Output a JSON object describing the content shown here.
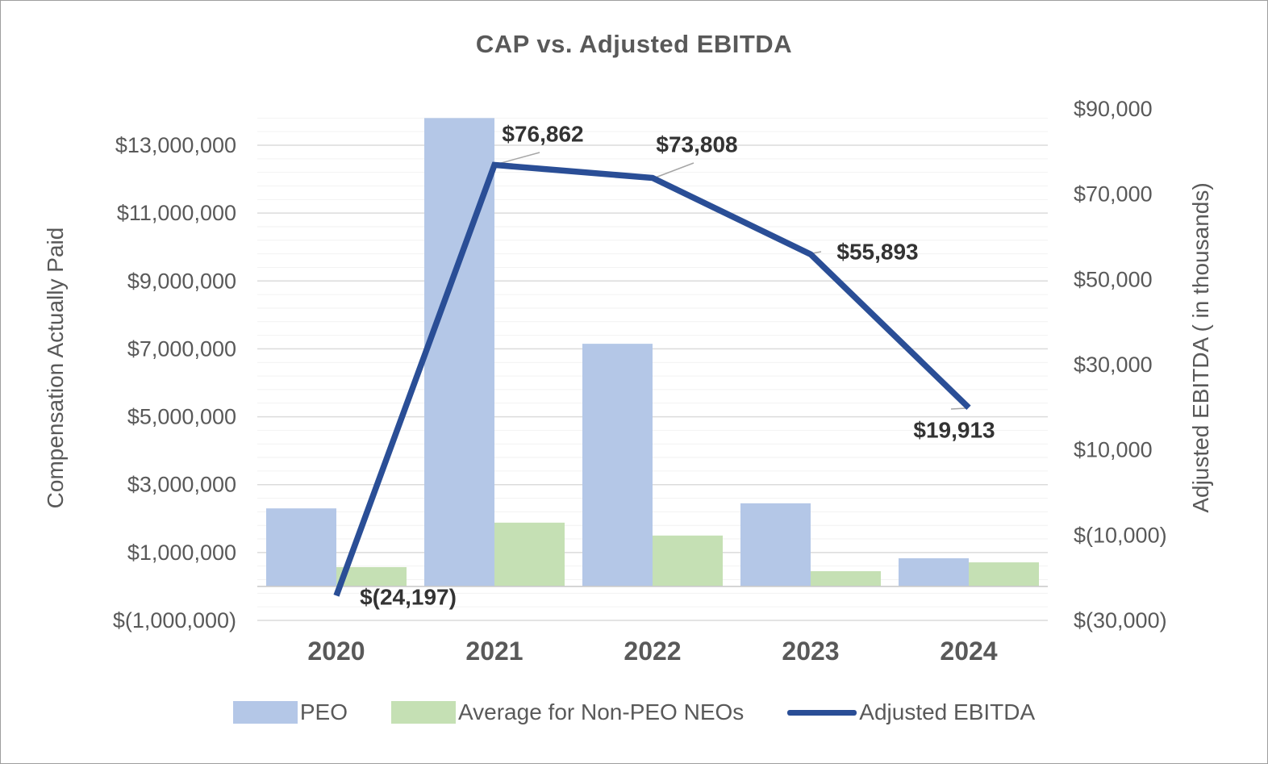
{
  "title": "CAP vs. Adjusted EBITDA",
  "left_axis": {
    "title": "Compensation Actually Paid",
    "tick_values": [
      -1000000,
      1000000,
      3000000,
      5000000,
      7000000,
      9000000,
      11000000,
      13000000
    ],
    "tick_labels": [
      "$(1,000,000)",
      "$1,000,000",
      "$3,000,000",
      "$5,000,000",
      "$7,000,000",
      "$9,000,000",
      "$11,000,000",
      "$13,000,000"
    ]
  },
  "right_axis": {
    "title": "Adjusted EBITDA ( in thousands)",
    "tick_values": [
      -30000,
      -10000,
      10000,
      30000,
      50000,
      70000,
      90000
    ],
    "tick_labels": [
      "$(30,000)",
      "$(10,000)",
      "$10,000",
      "$30,000",
      "$50,000",
      "$70,000",
      "$90,000"
    ]
  },
  "colors": {
    "peo_bar": "#b4c7e7",
    "non_peo_bar": "#c5e0b4",
    "ebitda_line": "#2a4e96",
    "axis_text": "#595959",
    "data_label_text": "#333333",
    "major_gridline": "#dbdbdb",
    "minor_gridline": "#f2f2f2",
    "baseline": "#c8c8c8",
    "leader_line": "#a6a6a6"
  },
  "legend": {
    "items": [
      {
        "label": "PEO"
      },
      {
        "label": "Average for Non-PEO NEOs"
      },
      {
        "label": "Adjusted EBITDA"
      }
    ]
  },
  "chart_data": {
    "type": "combo",
    "categories": [
      "2020",
      "2021",
      "2022",
      "2023",
      "2024"
    ],
    "series": [
      {
        "name": "PEO",
        "type": "bar",
        "axis": "left",
        "color": "#b4c7e7",
        "values": [
          2300000,
          13800000,
          7150000,
          2450000,
          830000
        ]
      },
      {
        "name": "Average for Non-PEO NEOs",
        "type": "bar",
        "axis": "left",
        "color": "#c5e0b4",
        "values": [
          570000,
          1880000,
          1500000,
          450000,
          710000
        ]
      },
      {
        "name": "Adjusted EBITDA",
        "type": "line",
        "axis": "right",
        "color": "#2a4e96",
        "values": [
          -24197,
          76862,
          73808,
          55893,
          19913
        ],
        "labels": [
          "$(24,197)",
          "$76,862",
          "$73,808",
          "$55,893",
          "$19,913"
        ]
      }
    ],
    "left_ylim": [
      -1000000,
      14000000
    ],
    "left_major_unit": 2000000,
    "left_minor_unit": 400000,
    "right_ylim": [
      -30000,
      90000
    ],
    "right_major_unit": 20000,
    "grid": true,
    "legend_position": "bottom",
    "title": "CAP vs. Adjusted EBITDA",
    "left_ylabel": "Compensation Actually Paid",
    "right_ylabel": "Adjusted EBITDA ( in thousands)"
  }
}
